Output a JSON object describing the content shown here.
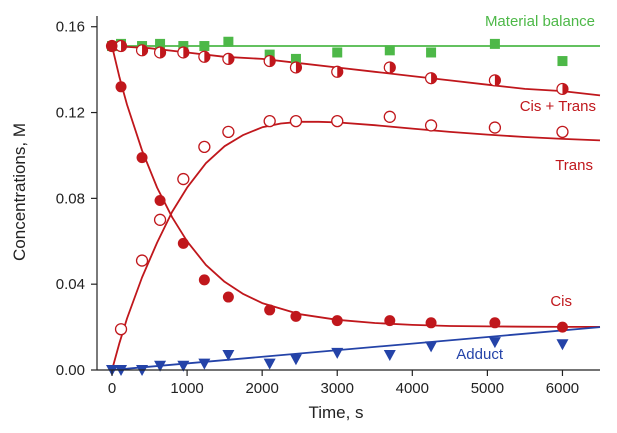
{
  "chart_data": {
    "type": "scatter",
    "title": "",
    "xlabel": "Time, s",
    "ylabel": "Concentrations, M",
    "xlim": [
      -200,
      6500
    ],
    "ylim": [
      0,
      0.165
    ],
    "xticks": [
      0,
      1000,
      2000,
      3000,
      4000,
      5000,
      6000
    ],
    "yticks": [
      0.0,
      0.04,
      0.08,
      0.12,
      0.16
    ],
    "xtick_labels": [
      "0",
      "1000",
      "2000",
      "3000",
      "4000",
      "5000",
      "6000"
    ],
    "ytick_labels": [
      "0.00",
      "0.04",
      "0.08",
      "0.12",
      "0.16"
    ],
    "grid": false,
    "series": [
      {
        "name": "Material balance",
        "color": "#4db848",
        "marker": "square",
        "x": [
          0,
          60,
          120,
          400,
          640,
          950,
          1230,
          1550,
          2100,
          2450,
          3000,
          3700,
          4250,
          5100,
          6000
        ],
        "y": [
          0.151,
          0.151,
          0.152,
          0.151,
          0.152,
          0.151,
          0.151,
          0.153,
          0.147,
          0.145,
          0.148,
          0.149,
          0.148,
          0.152,
          0.144
        ],
        "fit": {
          "x": [
            0,
            6500
          ],
          "y": [
            0.151,
            0.151
          ]
        }
      },
      {
        "name": "Cis + Trans",
        "color": "#c0171c",
        "marker": "half-circle",
        "x": [
          0,
          120,
          400,
          640,
          950,
          1230,
          1550,
          2100,
          2450,
          3000,
          3700,
          4250,
          5100,
          6000
        ],
        "y": [
          0.151,
          0.151,
          0.149,
          0.148,
          0.148,
          0.146,
          0.145,
          0.144,
          0.141,
          0.139,
          0.141,
          0.136,
          0.135,
          0.131
        ],
        "fit": {
          "x": [
            0,
            500,
            1000,
            1500,
            2000,
            2500,
            3000,
            3500,
            4000,
            4500,
            5000,
            5500,
            6000,
            6500
          ],
          "y": [
            0.151,
            0.15,
            0.148,
            0.146,
            0.145,
            0.143,
            0.141,
            0.139,
            0.137,
            0.135,
            0.133,
            0.131,
            0.13,
            0.128
          ]
        }
      },
      {
        "name": "Trans",
        "color": "#c0171c",
        "marker": "open-circle",
        "x": [
          120,
          400,
          640,
          950,
          1230,
          1550,
          2100,
          2450,
          3000,
          3700,
          4250,
          5100,
          6000
        ],
        "y": [
          0.019,
          0.051,
          0.07,
          0.089,
          0.104,
          0.111,
          0.116,
          0.116,
          0.116,
          0.118,
          0.114,
          0.113,
          0.111
        ],
        "fit": {
          "x": [
            0,
            100,
            200,
            400,
            600,
            800,
            1000,
            1250,
            1500,
            1750,
            2000,
            2250,
            2500,
            2750,
            3000,
            3500,
            4000,
            4500,
            5000,
            5500,
            6000,
            6500
          ],
          "y": [
            0.0,
            0.0127,
            0.024,
            0.0431,
            0.0594,
            0.0737,
            0.085,
            0.0964,
            0.1043,
            0.1096,
            0.1131,
            0.1149,
            0.1157,
            0.1157,
            0.1154,
            0.1141,
            0.1125,
            0.111,
            0.1097,
            0.1086,
            0.1077,
            0.107
          ]
        }
      },
      {
        "name": "Cis",
        "color": "#c0171c",
        "marker": "filled-circle",
        "x": [
          0,
          120,
          400,
          640,
          950,
          1230,
          1550,
          2100,
          2450,
          3000,
          3700,
          4250,
          5100,
          6000
        ],
        "y": [
          0.151,
          0.132,
          0.099,
          0.079,
          0.059,
          0.042,
          0.034,
          0.028,
          0.025,
          0.023,
          0.023,
          0.022,
          0.022,
          0.02
        ],
        "fit": {
          "x": [
            0,
            100,
            200,
            400,
            600,
            800,
            1000,
            1250,
            1500,
            1750,
            2000,
            2500,
            3000,
            3500,
            4000,
            4500,
            5000,
            5500,
            6000,
            6500
          ],
          "y": [
            0.151,
            0.1364,
            0.1237,
            0.1024,
            0.085,
            0.0712,
            0.06,
            0.049,
            0.0411,
            0.0354,
            0.0312,
            0.026,
            0.0234,
            0.0219,
            0.021,
            0.0205,
            0.0203,
            0.0202,
            0.0201,
            0.0201
          ]
        }
      },
      {
        "name": "Adduct",
        "color": "#2443a8",
        "marker": "triangle-down",
        "x": [
          0,
          120,
          400,
          640,
          950,
          1230,
          1550,
          2100,
          2450,
          3000,
          3700,
          4250,
          5100,
          6000
        ],
        "y": [
          0.0,
          0.0,
          0.0,
          0.002,
          0.002,
          0.003,
          0.007,
          0.003,
          0.005,
          0.008,
          0.007,
          0.011,
          0.013,
          0.012
        ],
        "fit": {
          "x": [
            0,
            6500
          ],
          "y": [
            0.0,
            0.02
          ]
        }
      }
    ],
    "annotations": [
      {
        "text": "Material balance",
        "color": "#4db848"
      },
      {
        "text": "Cis + Trans",
        "color": "#c0171c"
      },
      {
        "text": "Trans",
        "color": "#c0171c"
      },
      {
        "text": "Cis",
        "color": "#c0171c"
      },
      {
        "text": "Adduct",
        "color": "#2443a8"
      }
    ]
  }
}
